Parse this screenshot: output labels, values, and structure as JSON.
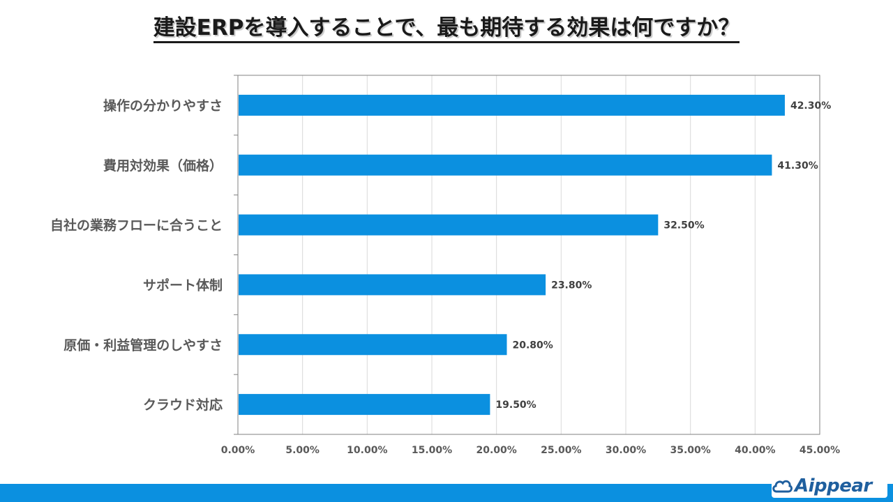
{
  "title": "建設ERPを導入することで、最も期待する効果は何ですか？",
  "colors": {
    "bar": "#0b90e0",
    "footer": "#0b90e0",
    "logo": "#1f5f9e",
    "grid": "#d9d9d9",
    "axis": "#808080",
    "category_text": "#595959",
    "value_text": "#404040"
  },
  "logo": {
    "text": "Aippear",
    "icon": "cloud-icon"
  },
  "chart_data": {
    "type": "bar",
    "orientation": "horizontal",
    "categories": [
      "操作の分かりやすさ",
      "費用対効果（価格）",
      "自社の業務フローに合うこと",
      "サポート体制",
      "原価・利益管理のしやすさ",
      "クラウド対応"
    ],
    "values": [
      42.3,
      41.3,
      32.5,
      23.8,
      20.8,
      19.5
    ],
    "value_labels": [
      "42.30%",
      "41.30%",
      "32.50%",
      "23.80%",
      "20.80%",
      "19.50%"
    ],
    "xlim": [
      0,
      45
    ],
    "ticks": [
      "0.00%",
      "5.00%",
      "10.00%",
      "15.00%",
      "20.00%",
      "25.00%",
      "30.00%",
      "35.00%",
      "40.00%",
      "45.00%"
    ],
    "grid": true,
    "legend": "none"
  }
}
